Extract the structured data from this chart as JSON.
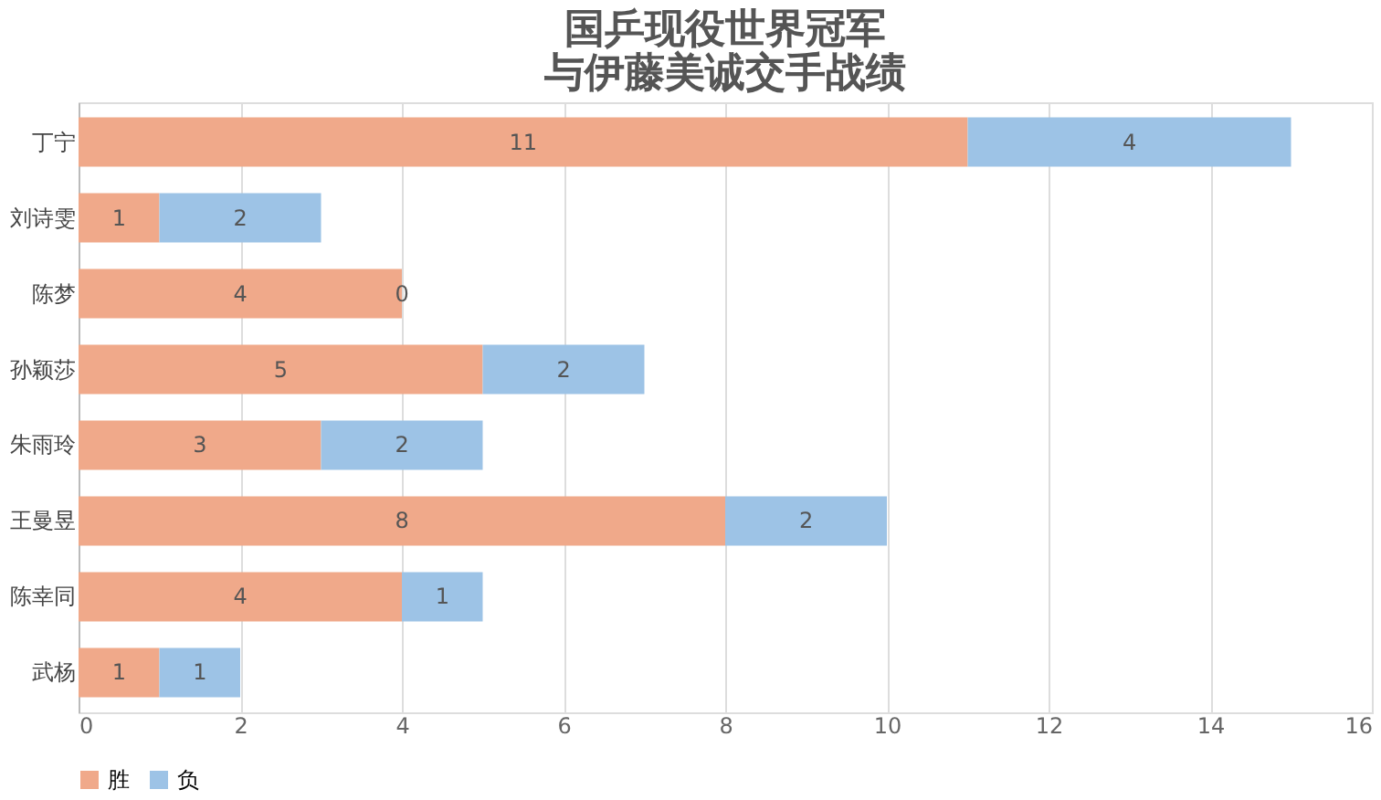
{
  "chart_data": {
    "type": "bar",
    "orientation": "horizontal",
    "stacked": true,
    "title": "国乒现役世界冠军与伊藤美诚交手战绩",
    "categories": [
      "丁宁",
      "刘诗雯",
      "陈梦",
      "孙颖莎",
      "朱雨玲",
      "王曼昱",
      "陈幸同",
      "武杨"
    ],
    "series": [
      {
        "name": "胜",
        "color": "#f0a98a",
        "values": [
          11,
          1,
          4,
          5,
          3,
          8,
          4,
          1
        ]
      },
      {
        "name": "负",
        "color": "#9dc3e6",
        "values": [
          4,
          2,
          0,
          2,
          2,
          2,
          1,
          1
        ]
      }
    ],
    "xlim": [
      0,
      16
    ],
    "xticks": [
      0,
      2,
      4,
      6,
      8,
      10,
      12,
      14,
      16
    ],
    "grid": "x",
    "legend": "bottom",
    "data_labels": true
  }
}
